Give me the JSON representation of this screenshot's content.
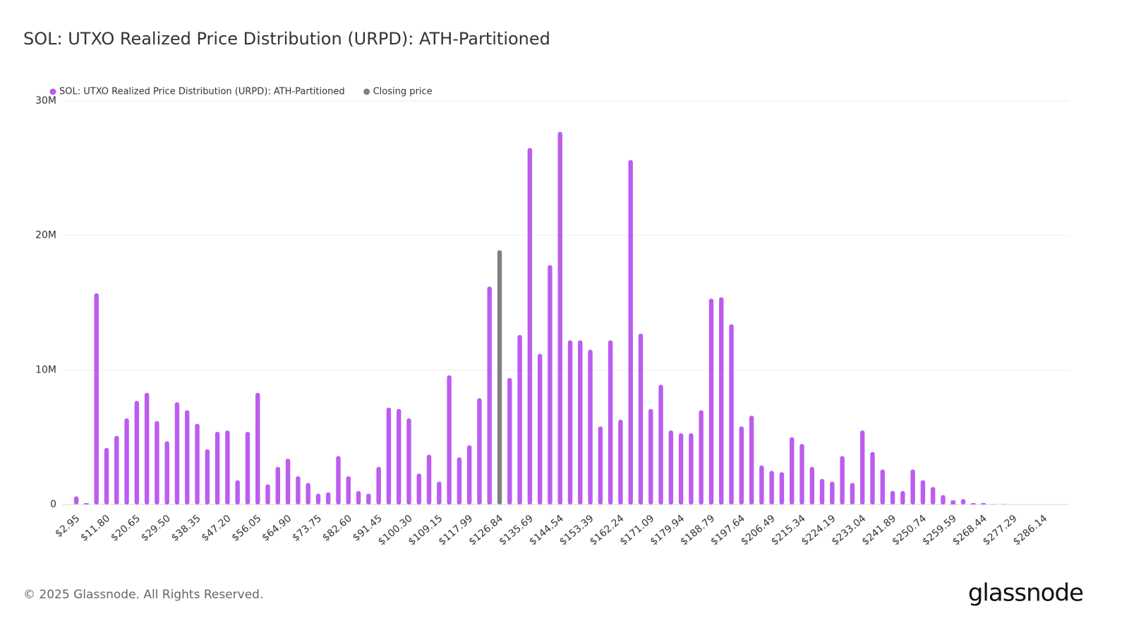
{
  "chart_data": {
    "type": "bar",
    "title": "SOL: UTXO Realized Price Distribution (URPD): ATH-Partitioned",
    "footer": "© 2025 Glassnode. All Rights Reserved.",
    "brand": "glassnode",
    "categories": [
      "$2.95",
      null,
      null,
      "$11.80",
      null,
      null,
      "$20.65",
      null,
      null,
      "$29.50",
      null,
      null,
      "$38.35",
      null,
      null,
      "$47.20",
      null,
      null,
      "$56.05",
      null,
      null,
      "$64.90",
      null,
      null,
      "$73.75",
      null,
      null,
      "$82.60",
      null,
      null,
      "$91.45",
      null,
      null,
      "$100.30",
      null,
      null,
      "$109.15",
      null,
      null,
      "$117.99",
      null,
      null,
      "$126.84",
      null,
      null,
      "$135.69",
      null,
      null,
      "$144.54",
      null,
      null,
      "$153.39",
      null,
      null,
      "$162.24",
      null,
      null,
      "$171.09",
      null,
      null,
      "$179.94",
      null,
      null,
      "$188.79",
      null,
      null,
      "$197.64",
      null,
      null,
      "$206.49",
      null,
      null,
      "$215.34",
      null,
      null,
      "$224.19",
      null,
      null,
      "$233.04",
      null,
      null,
      "$241.89",
      null,
      null,
      "$250.74",
      null,
      null,
      "$259.59",
      null,
      null,
      "$268.44",
      null,
      null,
      "$277.29",
      null,
      null,
      "$286.14",
      null,
      null
    ],
    "series": [
      {
        "name": "SOL: UTXO Realized Price Distribution (URPD): ATH-Partitioned",
        "color": "#bc5cf0",
        "values": [
          600000,
          100000,
          15700000,
          4200000,
          5100000,
          6400000,
          7700000,
          8300000,
          6200000,
          4700000,
          7600000,
          7000000,
          6000000,
          4100000,
          5400000,
          5500000,
          1800000,
          5400000,
          8300000,
          1500000,
          2800000,
          3400000,
          2100000,
          1600000,
          800000,
          900000,
          3600000,
          2100000,
          1000000,
          800000,
          2800000,
          7200000,
          7100000,
          6400000,
          2300000,
          3700000,
          1700000,
          9600000,
          3500000,
          4400000,
          7900000,
          16200000,
          null,
          9400000,
          12600000,
          26500000,
          11200000,
          17800000,
          27700000,
          12200000,
          12200000,
          11500000,
          5800000,
          12200000,
          6300000,
          25600000,
          12700000,
          7100000,
          8900000,
          5500000,
          5300000,
          5300000,
          7000000,
          15300000,
          15400000,
          13400000,
          5800000,
          6600000,
          2900000,
          2500000,
          2400000,
          5000000,
          4500000,
          2800000,
          1900000,
          1700000,
          3600000,
          1600000,
          5500000,
          3900000,
          2600000,
          1000000,
          1000000,
          2600000,
          1800000,
          1300000,
          700000,
          300000,
          400000,
          100000,
          100000,
          20000,
          20000,
          0,
          0,
          0,
          0,
          0,
          0
        ]
      },
      {
        "name": "Closing price",
        "color": "#808080",
        "values": [
          null,
          null,
          null,
          null,
          null,
          null,
          null,
          null,
          null,
          null,
          null,
          null,
          null,
          null,
          null,
          null,
          null,
          null,
          null,
          null,
          null,
          null,
          null,
          null,
          null,
          null,
          null,
          null,
          null,
          null,
          null,
          null,
          null,
          null,
          null,
          null,
          null,
          null,
          null,
          null,
          null,
          null,
          18900000,
          null,
          null,
          null,
          null,
          null,
          null,
          null,
          null,
          null,
          null,
          null,
          null,
          null,
          null,
          null,
          null,
          null,
          null,
          null,
          null,
          null,
          null,
          null,
          null,
          null,
          null,
          null,
          null,
          null,
          null,
          null,
          null,
          null,
          null,
          null,
          null,
          null,
          null,
          null,
          null,
          null,
          null,
          null,
          null,
          null,
          null,
          null,
          null,
          null,
          null,
          null,
          null,
          null,
          null,
          null,
          null
        ]
      }
    ],
    "ylim": [
      0,
      30000000
    ],
    "yticks": [
      0,
      {
        "value": 10000000,
        "label": "10M"
      },
      {
        "value": 20000000,
        "label": "20M"
      },
      {
        "value": 30000000,
        "label": "30M"
      }
    ],
    "grid": true
  }
}
